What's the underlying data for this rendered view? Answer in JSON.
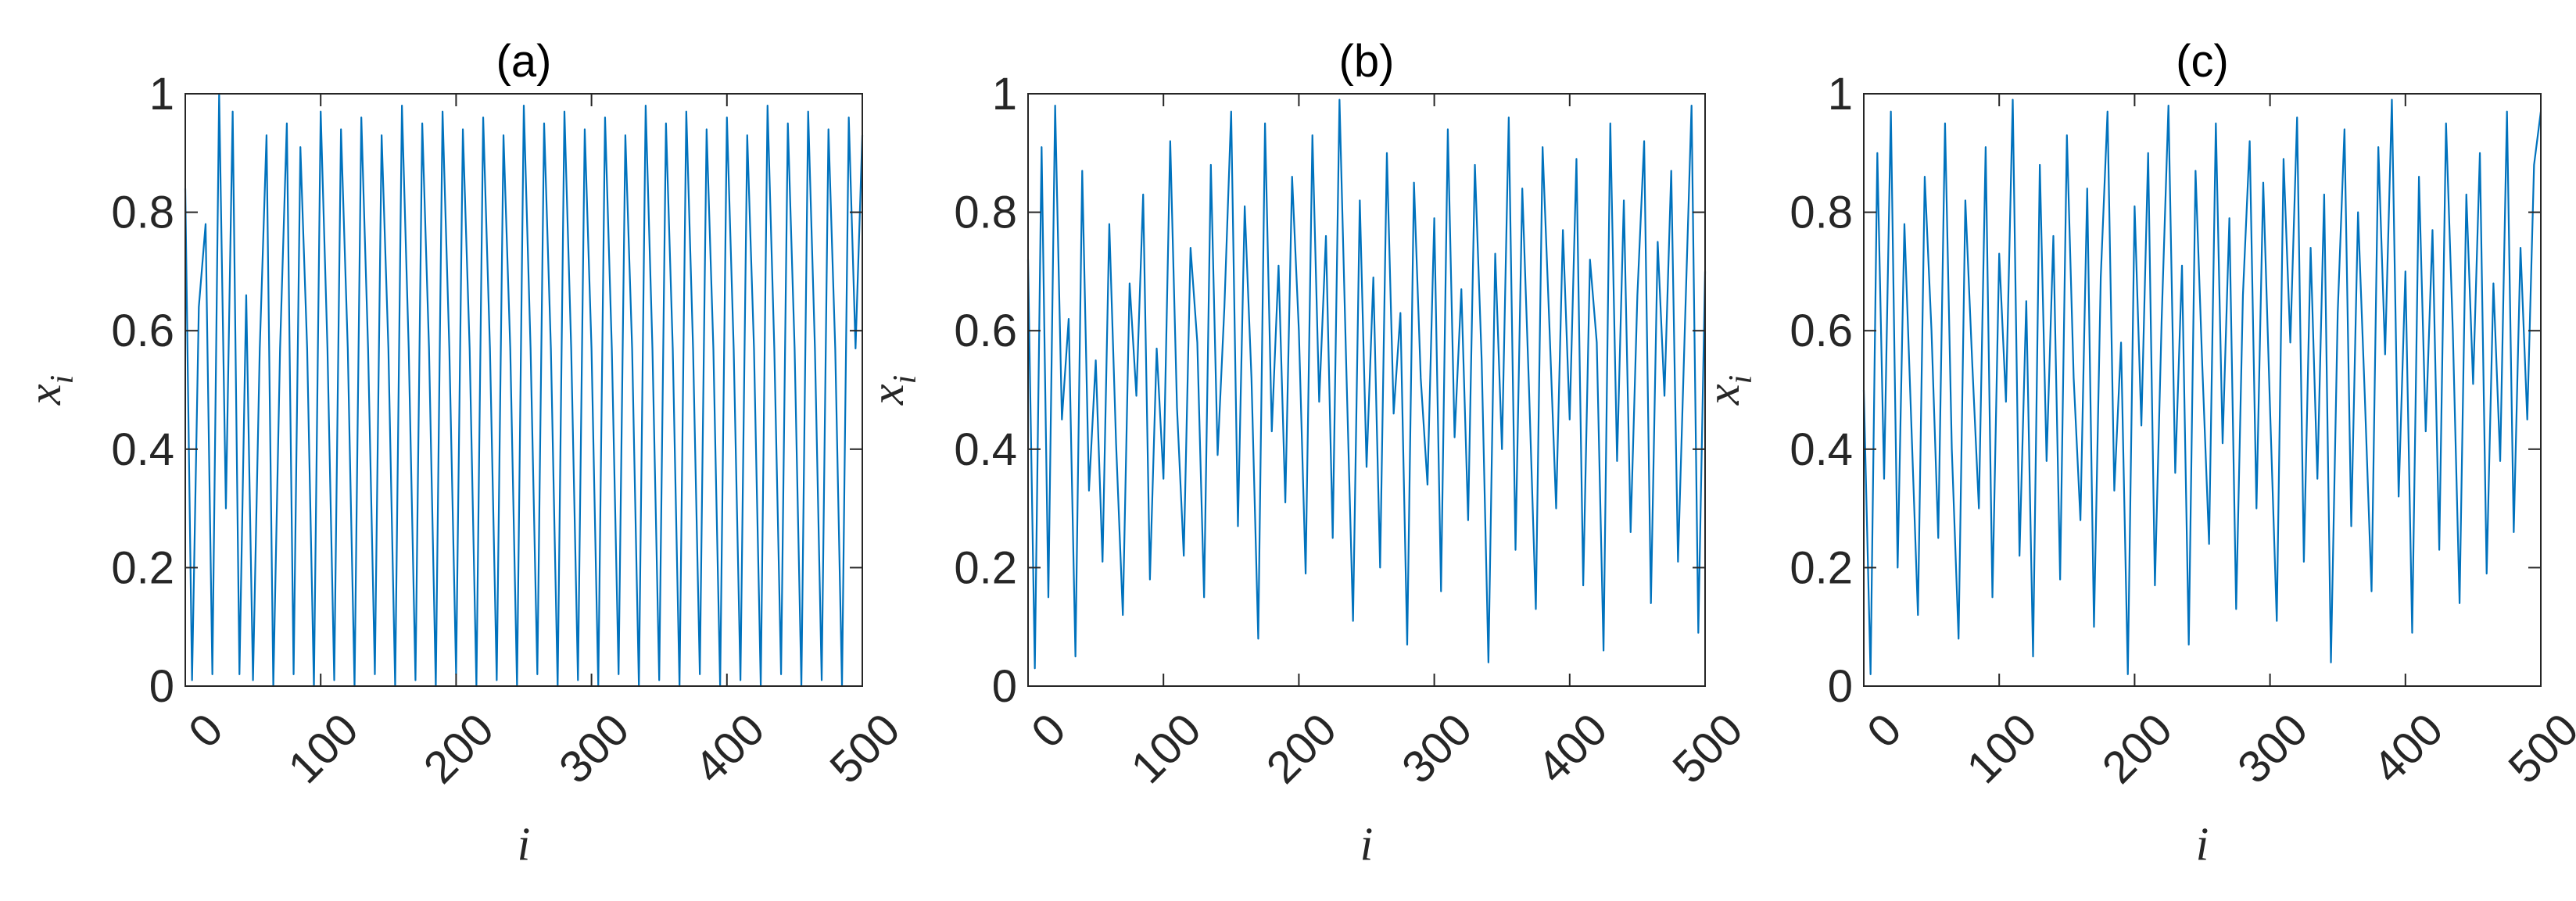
{
  "chart_data": [
    {
      "type": "line",
      "title": "(a)",
      "xlabel": "i",
      "ylabel": {
        "base": "x",
        "sub": "i"
      },
      "color": "#0072bd",
      "xlim": [
        0,
        500
      ],
      "ylim": [
        0,
        1
      ],
      "xticks": [
        0,
        100,
        200,
        300,
        400,
        500
      ],
      "yticks": [
        0,
        0.2,
        0.4,
        0.6,
        0.8,
        1
      ],
      "x": [
        0,
        5,
        10,
        15,
        20,
        25,
        30,
        35,
        40,
        45,
        50,
        55,
        60,
        65,
        70,
        75,
        80,
        85,
        90,
        95,
        100,
        105,
        110,
        115,
        120,
        125,
        130,
        135,
        140,
        145,
        150,
        155,
        160,
        165,
        170,
        175,
        180,
        185,
        190,
        195,
        200,
        205,
        210,
        215,
        220,
        225,
        230,
        235,
        240,
        245,
        250,
        255,
        260,
        265,
        270,
        275,
        280,
        285,
        290,
        295,
        300,
        305,
        310,
        315,
        320,
        325,
        330,
        335,
        340,
        345,
        350,
        355,
        360,
        365,
        370,
        375,
        380,
        385,
        390,
        395,
        400,
        405,
        410,
        415,
        420,
        425,
        430,
        435,
        440,
        445,
        450,
        455,
        460,
        465,
        470,
        475,
        480,
        485,
        490,
        495,
        500
      ],
      "values": [
        0.84,
        0.01,
        0.64,
        0.78,
        0.02,
        1,
        0.3,
        0.97,
        0.02,
        0.66,
        0.01,
        0.57,
        0.93,
        0.0,
        0.57,
        0.95,
        0.02,
        0.91,
        0.57,
        0.0,
        0.97,
        0.57,
        0.01,
        0.94,
        0.57,
        0.0,
        0.96,
        0.57,
        0.02,
        0.93,
        0.57,
        0.0,
        0.98,
        0.57,
        0.01,
        0.95,
        0.57,
        0.0,
        0.97,
        0.57,
        0.02,
        0.94,
        0.57,
        0.0,
        0.96,
        0.57,
        0.01,
        0.93,
        0.57,
        0.0,
        0.98,
        0.57,
        0.02,
        0.95,
        0.57,
        0.0,
        0.97,
        0.57,
        0.01,
        0.94,
        0.57,
        0.0,
        0.96,
        0.57,
        0.02,
        0.93,
        0.57,
        0.0,
        0.98,
        0.57,
        0.01,
        0.95,
        0.57,
        0.0,
        0.97,
        0.57,
        0.02,
        0.94,
        0.57,
        0.0,
        0.96,
        0.57,
        0.01,
        0.93,
        0.57,
        0.0,
        0.98,
        0.57,
        0.02,
        0.95,
        0.57,
        0.0,
        0.97,
        0.57,
        0.01,
        0.94,
        0.57,
        0.0,
        0.96,
        0.57,
        0.93
      ]
    },
    {
      "type": "line",
      "title": "(b)",
      "xlabel": "i",
      "ylabel": {
        "base": "x",
        "sub": "i"
      },
      "color": "#0072bd",
      "xlim": [
        0,
        500
      ],
      "ylim": [
        0,
        1
      ],
      "xticks": [
        0,
        100,
        200,
        300,
        400,
        500
      ],
      "yticks": [
        0,
        0.2,
        0.4,
        0.6,
        0.8,
        1
      ],
      "x": [
        0,
        5,
        10,
        15,
        20,
        25,
        30,
        35,
        40,
        45,
        50,
        55,
        60,
        65,
        70,
        75,
        80,
        85,
        90,
        95,
        100,
        105,
        110,
        115,
        120,
        125,
        130,
        135,
        140,
        145,
        150,
        155,
        160,
        165,
        170,
        175,
        180,
        185,
        190,
        195,
        200,
        205,
        210,
        215,
        220,
        225,
        230,
        235,
        240,
        245,
        250,
        255,
        260,
        265,
        270,
        275,
        280,
        285,
        290,
        295,
        300,
        305,
        310,
        315,
        320,
        325,
        330,
        335,
        340,
        345,
        350,
        355,
        360,
        365,
        370,
        375,
        380,
        385,
        390,
        395,
        400,
        405,
        410,
        415,
        420,
        425,
        430,
        435,
        440,
        445,
        450,
        455,
        460,
        465,
        470,
        475,
        480,
        485,
        490,
        495,
        500
      ],
      "values": [
        0.72,
        0.03,
        0.91,
        0.15,
        0.98,
        0.45,
        0.62,
        0.05,
        0.87,
        0.33,
        0.55,
        0.21,
        0.78,
        0.41,
        0.12,
        0.68,
        0.49,
        0.83,
        0.18,
        0.57,
        0.35,
        0.92,
        0.47,
        0.22,
        0.74,
        0.58,
        0.15,
        0.88,
        0.39,
        0.64,
        0.97,
        0.27,
        0.81,
        0.52,
        0.08,
        0.95,
        0.43,
        0.71,
        0.31,
        0.86,
        0.6,
        0.19,
        0.93,
        0.48,
        0.76,
        0.25,
        0.99,
        0.54,
        0.11,
        0.82,
        0.37,
        0.69,
        0.2,
        0.9,
        0.46,
        0.63,
        0.07,
        0.85,
        0.52,
        0.34,
        0.79,
        0.16,
        0.94,
        0.42,
        0.67,
        0.28,
        0.88,
        0.55,
        0.04,
        0.73,
        0.4,
        0.96,
        0.23,
        0.84,
        0.5,
        0.13,
        0.91,
        0.61,
        0.3,
        0.77,
        0.45,
        0.89,
        0.17,
        0.72,
        0.58,
        0.06,
        0.95,
        0.38,
        0.82,
        0.26,
        0.66,
        0.92,
        0.14,
        0.75,
        0.49,
        0.87,
        0.21,
        0.6,
        0.98,
        0.09,
        0.7
      ]
    },
    {
      "type": "line",
      "title": "(c)",
      "xlabel": "i",
      "ylabel": {
        "base": "x",
        "sub": "i"
      },
      "color": "#0072bd",
      "xlim": [
        0,
        500
      ],
      "ylim": [
        0,
        1
      ],
      "xticks": [
        0,
        100,
        200,
        300,
        400,
        500
      ],
      "yticks": [
        0,
        0.2,
        0.4,
        0.6,
        0.8,
        1
      ],
      "x": [
        0,
        5,
        10,
        15,
        20,
        25,
        30,
        35,
        40,
        45,
        50,
        55,
        60,
        65,
        70,
        75,
        80,
        85,
        90,
        95,
        100,
        105,
        110,
        115,
        120,
        125,
        130,
        135,
        140,
        145,
        150,
        155,
        160,
        165,
        170,
        175,
        180,
        185,
        190,
        195,
        200,
        205,
        210,
        215,
        220,
        225,
        230,
        235,
        240,
        245,
        250,
        255,
        260,
        265,
        270,
        275,
        280,
        285,
        290,
        295,
        300,
        305,
        310,
        315,
        320,
        325,
        330,
        335,
        340,
        345,
        350,
        355,
        360,
        365,
        370,
        375,
        380,
        385,
        390,
        395,
        400,
        405,
        410,
        415,
        420,
        425,
        430,
        435,
        440,
        445,
        450,
        455,
        460,
        465,
        470,
        475,
        480,
        485,
        490,
        495,
        500
      ],
      "values": [
        0.5,
        0.02,
        0.9,
        0.35,
        0.97,
        0.2,
        0.78,
        0.45,
        0.12,
        0.86,
        0.6,
        0.25,
        0.95,
        0.4,
        0.08,
        0.82,
        0.55,
        0.3,
        0.91,
        0.15,
        0.73,
        0.48,
        0.99,
        0.22,
        0.65,
        0.05,
        0.88,
        0.38,
        0.76,
        0.18,
        0.93,
        0.52,
        0.28,
        0.84,
        0.1,
        0.69,
        0.97,
        0.33,
        0.58,
        0.02,
        0.81,
        0.44,
        0.9,
        0.17,
        0.62,
        0.98,
        0.36,
        0.71,
        0.07,
        0.87,
        0.54,
        0.24,
        0.95,
        0.41,
        0.79,
        0.13,
        0.66,
        0.92,
        0.3,
        0.85,
        0.47,
        0.11,
        0.89,
        0.58,
        0.96,
        0.21,
        0.74,
        0.35,
        0.83,
        0.04,
        0.63,
        0.94,
        0.27,
        0.8,
        0.49,
        0.16,
        0.91,
        0.56,
        0.99,
        0.32,
        0.7,
        0.09,
        0.86,
        0.43,
        0.77,
        0.23,
        0.95,
        0.6,
        0.14,
        0.83,
        0.51,
        0.9,
        0.19,
        0.68,
        0.38,
        0.97,
        0.26,
        0.74,
        0.45,
        0.88,
        0.97
      ]
    }
  ]
}
